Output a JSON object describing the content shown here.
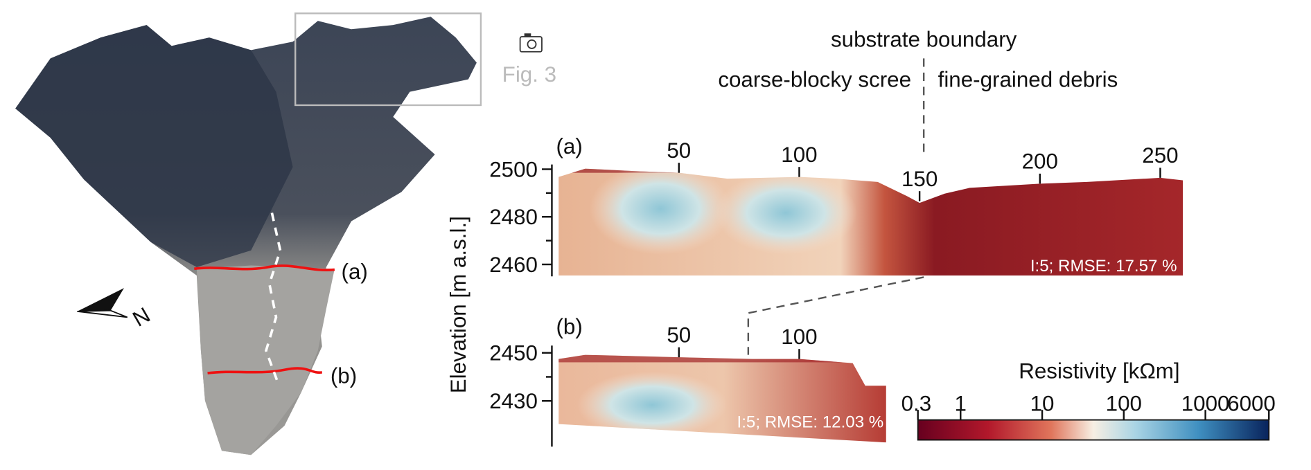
{
  "photo": {
    "fig_link": "Fig. 3",
    "profile_labels": [
      "(a)",
      "(b)"
    ],
    "north": "N"
  },
  "annotations": {
    "boundary": "substrate boundary",
    "left": "coarse-blocky scree",
    "right": "fine-grained debris"
  },
  "y_axis_label": "Elevation [m a.s.l.]",
  "panels": [
    {
      "label": "(a)",
      "xlim": [
        0,
        259
      ],
      "ylim": [
        2455,
        2502
      ],
      "xticks": [
        50,
        100,
        150,
        200,
        250
      ],
      "yticks": [
        2460,
        2480,
        2500
      ],
      "annotation": "I:5; RMSE: 17.57 %"
    },
    {
      "label": "(b)",
      "xlim": [
        0,
        136
      ],
      "ylim": [
        2411,
        2453
      ],
      "xticks": [
        50,
        100
      ],
      "yticks": [
        2430,
        2450
      ],
      "annotation": "I:5; RMSE: 12.03 %"
    }
  ],
  "colorbar": {
    "title": "Resistivity [kΩm]",
    "log": true,
    "lim": [
      0.3,
      6000
    ],
    "ticks": [
      0.3,
      1,
      10,
      100,
      1000,
      6000
    ]
  }
}
